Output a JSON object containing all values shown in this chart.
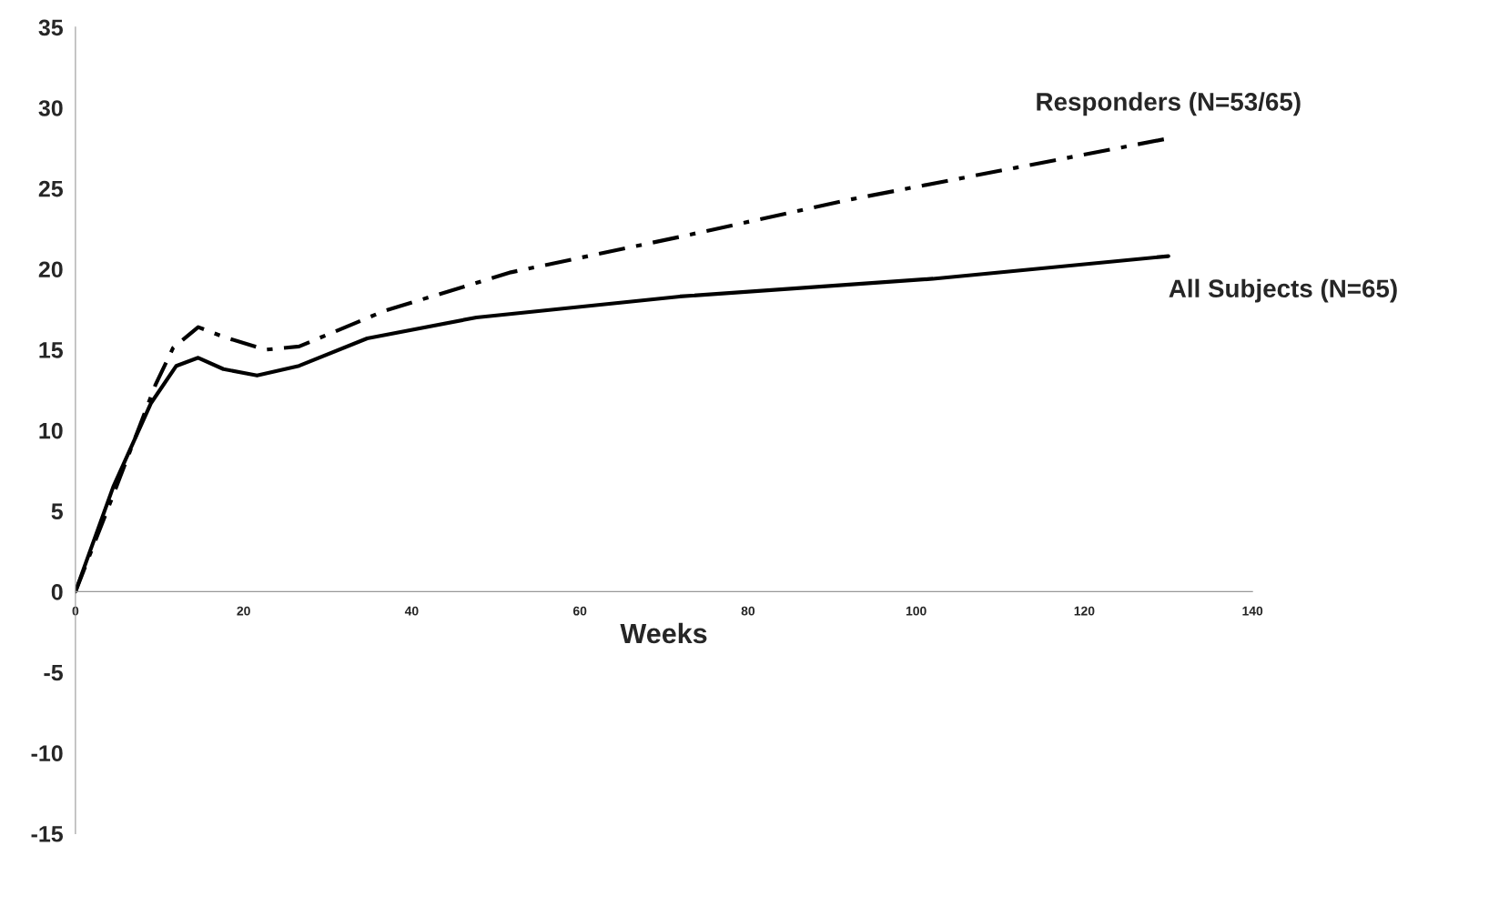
{
  "chart_data": {
    "type": "line",
    "xlabel": "Weeks",
    "xlim": [
      0,
      140
    ],
    "xticks": [
      0,
      20,
      40,
      60,
      80,
      100,
      120,
      140
    ],
    "ylim": [
      -15,
      35
    ],
    "yticks": [
      -15,
      -10,
      -5,
      0,
      5,
      10,
      15,
      20,
      25,
      30,
      35
    ],
    "grid": false,
    "legend": false,
    "marker": "none",
    "series": [
      {
        "name": "Responders (N=53/65)",
        "color": "#000000",
        "line_style": "dashdot",
        "x": [
          0,
          4.5,
          9.5,
          11.6,
          14.6,
          17.6,
          22.6,
          26.6,
          36.7,
          51.8,
          71.9,
          92,
          112,
          130
        ],
        "values": [
          0,
          6.0,
          12.8,
          15.1,
          16.4,
          15.8,
          15.0,
          15.2,
          17.4,
          19.8,
          22.0,
          24.3,
          26.3,
          28.1
        ]
      },
      {
        "name": "All Subjects (N=65)",
        "color": "#000000",
        "line_style": "solid",
        "x": [
          0,
          4.5,
          9,
          12,
          14.6,
          17.6,
          21.6,
          26.6,
          34.7,
          47.7,
          71.9,
          102,
          130
        ],
        "values": [
          0,
          6.5,
          11.7,
          14.0,
          14.5,
          13.8,
          13.4,
          14.0,
          15.7,
          17.0,
          18.3,
          19.4,
          20.8
        ]
      }
    ]
  }
}
